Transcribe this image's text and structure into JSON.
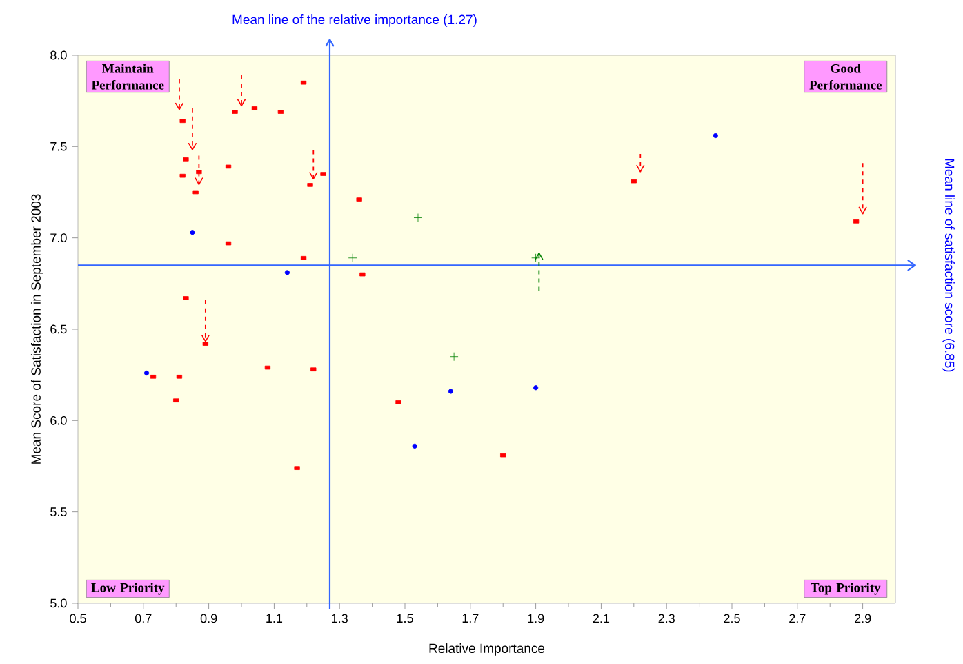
{
  "chart_data": {
    "type": "scatter",
    "xlabel": "Relative Importance",
    "ylabel": "Mean Score of Satisfaction in September 2003",
    "xlim": [
      0.5,
      3.0
    ],
    "ylim": [
      5.0,
      8.0
    ],
    "xticks": [
      0.5,
      0.7,
      0.9,
      1.1,
      1.3,
      1.5,
      1.7,
      1.9,
      2.1,
      2.3,
      2.5,
      2.7,
      2.9
    ],
    "yticks": [
      {
        "value": 5,
        "label": "5.0"
      },
      {
        "value": 5.5,
        "label": "5.5"
      },
      {
        "value": 6,
        "label": "6.0"
      },
      {
        "value": 6.5,
        "label": "6.5"
      },
      {
        "value": 7,
        "label": "7.0"
      },
      {
        "value": 7.5,
        "label": "7.5"
      },
      {
        "value": 8,
        "label": "8.0"
      }
    ],
    "grid": false,
    "ref_lines": [
      {
        "axis": "x",
        "value": 1.27,
        "label": "Mean line of the relative importance (1.27)",
        "color": "#3366ff"
      },
      {
        "axis": "y",
        "value": 6.85,
        "label": "Mean line of satisfaction score (6.85)",
        "color": "#3366ff"
      }
    ],
    "annotations": [
      "Maintain Performance",
      "Good Performance",
      "Low Priority",
      "Top Priority"
    ],
    "series": [
      {
        "marker": "square",
        "color": "#ff0000",
        "x": [
          0.82,
          0.83,
          0.82,
          0.86,
          0.87,
          0.96,
          0.98,
          1.04,
          1.12,
          1.19,
          1.21,
          1.25,
          1.36,
          0.96,
          1.19,
          1.37,
          0.83,
          0.89,
          0.73,
          0.81,
          0.8,
          1.08,
          1.22,
          1.48,
          1.17,
          1.8,
          2.2,
          2.88
        ],
        "values": [
          7.64,
          7.43,
          7.34,
          7.25,
          7.36,
          7.39,
          7.69,
          7.71,
          7.69,
          7.85,
          7.29,
          7.35,
          7.21,
          6.97,
          6.89,
          6.8,
          6.67,
          6.42,
          6.24,
          6.24,
          6.11,
          6.29,
          6.28,
          6.1,
          5.74,
          5.81,
          7.31,
          7.09
        ]
      },
      {
        "marker": "circle",
        "color": "#0000ff",
        "x": [
          0.71,
          0.85,
          1.14,
          1.53,
          1.64,
          1.9,
          2.45
        ],
        "values": [
          6.26,
          7.03,
          6.81,
          5.86,
          6.16,
          6.18,
          7.56
        ]
      },
      {
        "marker": "cross",
        "color": "#008000",
        "x": [
          1.34,
          1.54,
          1.65,
          1.9
        ],
        "values": [
          6.89,
          7.11,
          6.35,
          6.89
        ]
      },
      {
        "type": "line",
        "line_style": "dashed",
        "color": "#ff0000",
        "x": [
          0.81,
          0.81
        ],
        "values": [
          7.87,
          7.7
        ]
      },
      {
        "type": "line",
        "line_style": "dashed",
        "color": "#ff0000",
        "x": [
          0.85,
          0.85
        ],
        "values": [
          7.71,
          7.48
        ]
      },
      {
        "type": "line",
        "line_style": "dashed",
        "color": "#ff0000",
        "x": [
          0.87,
          0.87
        ],
        "values": [
          7.45,
          7.29
        ]
      },
      {
        "type": "line",
        "line_style": "dashed",
        "color": "#ff0000",
        "x": [
          1.0,
          1.0
        ],
        "values": [
          7.89,
          7.72
        ]
      },
      {
        "type": "line",
        "line_style": "dashed",
        "color": "#ff0000",
        "x": [
          1.22,
          1.22
        ],
        "values": [
          7.48,
          7.32
        ]
      },
      {
        "type": "line",
        "line_style": "dashed",
        "color": "#ff0000",
        "x": [
          0.89,
          0.89
        ],
        "values": [
          6.66,
          6.43
        ]
      },
      {
        "type": "line",
        "line_style": "dashed",
        "color": "#ff0000",
        "x": [
          2.22,
          2.22
        ],
        "values": [
          7.46,
          7.36
        ]
      },
      {
        "type": "line",
        "line_style": "dashed",
        "color": "#ff0000",
        "x": [
          2.9,
          2.9
        ],
        "values": [
          7.41,
          7.13
        ]
      },
      {
        "type": "line",
        "line_style": "dashed",
        "color": "#008000",
        "x": [
          1.91,
          1.91
        ],
        "values": [
          6.71,
          6.92
        ]
      }
    ]
  }
}
